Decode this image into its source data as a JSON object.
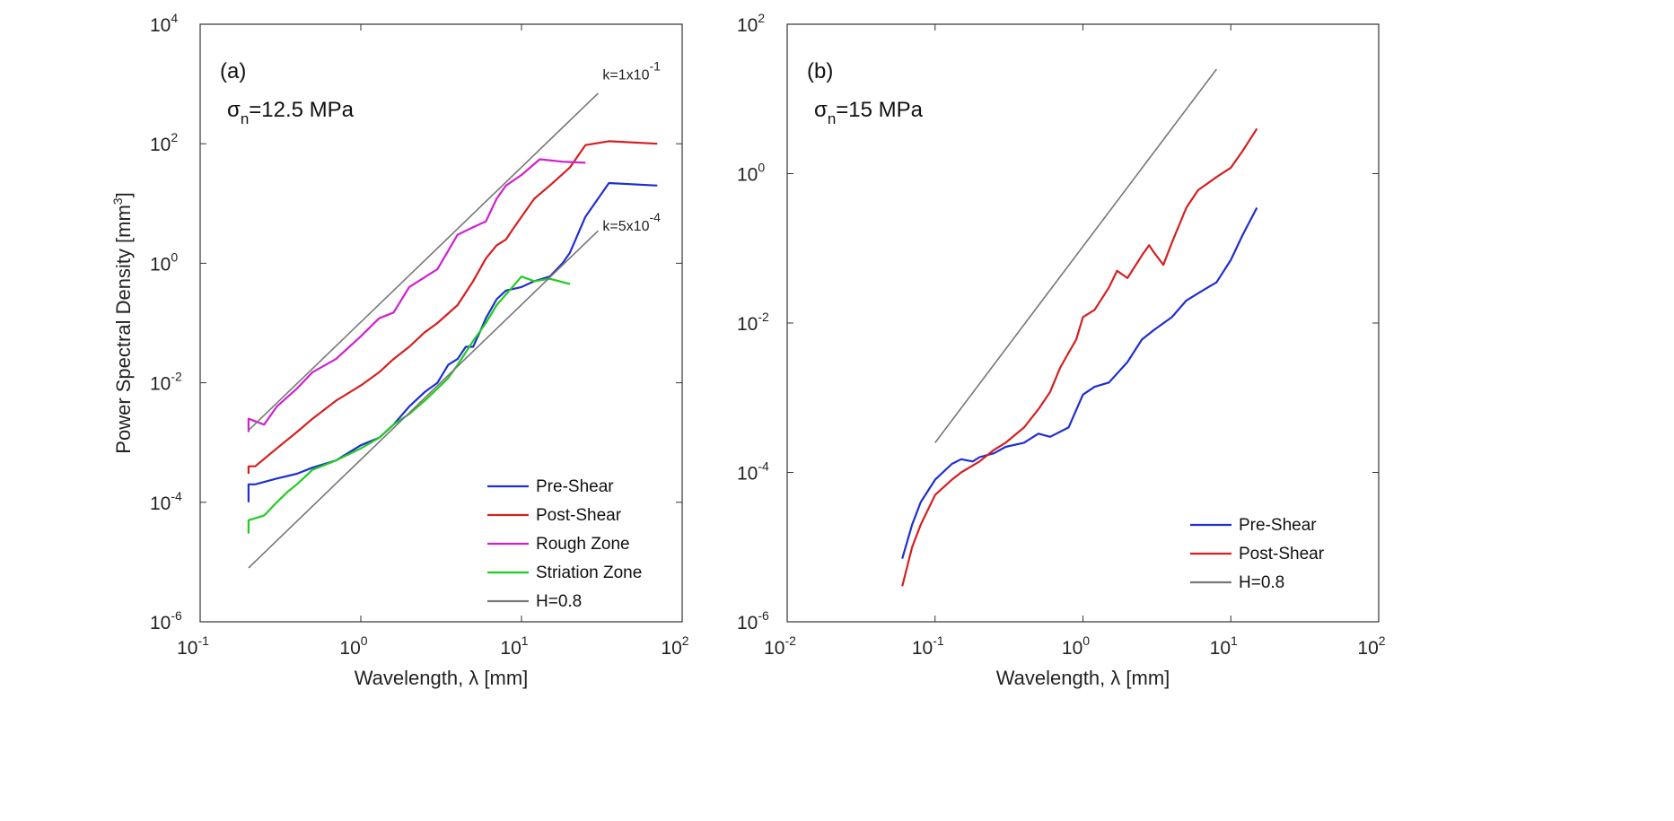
{
  "chart_data": [
    {
      "type": "line",
      "panel_label": "(a)",
      "annotation": {
        "prefix": "σ",
        "sub": "n",
        "rest": "=12.5 MPa"
      },
      "xlabel": "Wavelength, λ [mm]",
      "ylabel": "Power Spectral Density [mm",
      "ylabel_sup": "3",
      "ylabel_close": "]",
      "x_scale": "log",
      "y_scale": "log",
      "xlim": [
        0.1,
        100
      ],
      "ylim": [
        1e-06,
        10000
      ],
      "x_ticks": [
        {
          "base": "10",
          "exp": "-1",
          "value": 0.1
        },
        {
          "base": "10",
          "exp": "0",
          "value": 1
        },
        {
          "base": "10",
          "exp": "1",
          "value": 10
        },
        {
          "base": "10",
          "exp": "2",
          "value": 100
        }
      ],
      "y_ticks": [
        {
          "base": "10",
          "exp": "-6",
          "value": 1e-06
        },
        {
          "base": "10",
          "exp": "-4",
          "value": 0.0001
        },
        {
          "base": "10",
          "exp": "-2",
          "value": 0.01
        },
        {
          "base": "10",
          "exp": "0",
          "value": 1
        },
        {
          "base": "10",
          "exp": "2",
          "value": 100
        },
        {
          "base": "10",
          "exp": "4",
          "value": 10000
        }
      ],
      "slope_labels": [
        {
          "base": "k=1x10",
          "exp": "-1",
          "x": 32,
          "y": 1200
        },
        {
          "base": "k=5x10",
          "exp": "-4",
          "x": 32,
          "y": 3.5
        }
      ],
      "legend": {
        "position": "bottom-right",
        "entries": [
          "Pre-Shear",
          "Post-Shear",
          "Rough Zone",
          "Striation Zone",
          "H=0.8"
        ]
      },
      "series": [
        {
          "name": "Pre-Shear",
          "color": "#1f2fd0",
          "x": [
            0.2,
            0.2,
            0.22,
            0.3,
            0.4,
            0.5,
            0.7,
            1.0,
            1.3,
            1.6,
            2.0,
            2.5,
            3.0,
            3.5,
            4.0,
            4.5,
            5.0,
            5.5,
            6.0,
            7.0,
            8.0,
            10.0,
            12.0,
            15.0,
            18.0,
            20.0,
            25.0,
            35.0,
            70.0
          ],
          "y": [
            0.0001,
            0.0002,
            0.0002,
            0.00025,
            0.0003,
            0.00038,
            0.0005,
            0.0009,
            0.0012,
            0.002,
            0.004,
            0.007,
            0.01,
            0.02,
            0.025,
            0.04,
            0.04,
            0.07,
            0.12,
            0.25,
            0.35,
            0.4,
            0.5,
            0.6,
            1.0,
            1.5,
            6.0,
            22.0,
            20.0
          ]
        },
        {
          "name": "Post-Shear",
          "color": "#d42020",
          "x": [
            0.2,
            0.2,
            0.22,
            0.3,
            0.4,
            0.5,
            0.7,
            1.0,
            1.3,
            1.6,
            2.0,
            2.5,
            3.0,
            4.0,
            5.0,
            6.0,
            7.0,
            8.0,
            9.0,
            10.0,
            12.0,
            15.0,
            20.0,
            25.0,
            35.0,
            70.0
          ],
          "y": [
            0.0003,
            0.0004,
            0.0004,
            0.0008,
            0.0015,
            0.0025,
            0.005,
            0.009,
            0.015,
            0.025,
            0.04,
            0.07,
            0.1,
            0.2,
            0.5,
            1.2,
            2.0,
            2.5,
            4.0,
            6.0,
            12.0,
            20.0,
            40.0,
            95.0,
            110.0,
            100.0
          ]
        },
        {
          "name": "Rough Zone",
          "color": "#d020d0",
          "x": [
            0.2,
            0.2,
            0.25,
            0.3,
            0.4,
            0.5,
            0.7,
            1.0,
            1.3,
            1.6,
            2.0,
            3.0,
            4.0,
            5.0,
            6.0,
            7.0,
            8.0,
            10.0,
            13.0,
            18.0,
            25.0
          ],
          "y": [
            0.0015,
            0.0025,
            0.002,
            0.004,
            0.008,
            0.015,
            0.025,
            0.06,
            0.12,
            0.15,
            0.4,
            0.8,
            3.0,
            4.0,
            5.0,
            12.0,
            20.0,
            30.0,
            55.0,
            50.0,
            48.0
          ]
        },
        {
          "name": "Striation Zone",
          "color": "#22cc22",
          "x": [
            0.2,
            0.2,
            0.25,
            0.3,
            0.35,
            0.4,
            0.5,
            0.7,
            1.0,
            1.3,
            1.6,
            2.0,
            2.5,
            3.0,
            3.5,
            4.0,
            5.0,
            6.0,
            7.0,
            8.0,
            10.0,
            12.0,
            15.0,
            20.0
          ],
          "y": [
            3e-05,
            5e-05,
            6e-05,
            0.0001,
            0.00015,
            0.0002,
            0.00035,
            0.0005,
            0.0008,
            0.0012,
            0.002,
            0.003,
            0.005,
            0.008,
            0.012,
            0.02,
            0.05,
            0.1,
            0.2,
            0.3,
            0.6,
            0.5,
            0.55,
            0.45
          ]
        },
        {
          "name": "H=0.8",
          "color": "#777777",
          "x": [
            0.2,
            30.0
          ],
          "y": [
            8e-06,
            3.5
          ]
        },
        {
          "name": "",
          "color": "#777777",
          "x": [
            0.2,
            30.0
          ],
          "y": [
            0.0016,
            700.0
          ]
        }
      ]
    },
    {
      "type": "line",
      "panel_label": "(b)",
      "annotation": {
        "prefix": "σ",
        "sub": "n",
        "rest": "=15 MPa"
      },
      "xlabel": "Wavelength, λ [mm]",
      "ylabel": "",
      "x_scale": "log",
      "y_scale": "log",
      "xlim": [
        0.01,
        100
      ],
      "ylim": [
        1e-06,
        100
      ],
      "x_ticks": [
        {
          "base": "10",
          "exp": "-2",
          "value": 0.01
        },
        {
          "base": "10",
          "exp": "-1",
          "value": 0.1
        },
        {
          "base": "10",
          "exp": "0",
          "value": 1
        },
        {
          "base": "10",
          "exp": "1",
          "value": 10
        },
        {
          "base": "10",
          "exp": "2",
          "value": 100
        }
      ],
      "y_ticks": [
        {
          "base": "10",
          "exp": "-6",
          "value": 1e-06
        },
        {
          "base": "10",
          "exp": "-4",
          "value": 0.0001
        },
        {
          "base": "10",
          "exp": "-2",
          "value": 0.01
        },
        {
          "base": "10",
          "exp": "0",
          "value": 1
        },
        {
          "base": "10",
          "exp": "2",
          "value": 100
        }
      ],
      "slope_labels": [],
      "legend": {
        "position": "bottom-right",
        "entries": [
          "Pre-Shear",
          "Post-Shear",
          "H=0.8"
        ]
      },
      "series": [
        {
          "name": "Pre-Shear",
          "color": "#1f2fd0",
          "x": [
            0.06,
            0.07,
            0.08,
            0.1,
            0.13,
            0.15,
            0.18,
            0.2,
            0.25,
            0.3,
            0.4,
            0.5,
            0.6,
            0.8,
            1.0,
            1.2,
            1.5,
            2.0,
            2.5,
            3.0,
            4.0,
            5.0,
            6.0,
            7.0,
            8.0,
            10.0,
            12.0,
            15.0
          ],
          "y": [
            7e-06,
            2e-05,
            4e-05,
            8e-05,
            0.00013,
            0.00015,
            0.00014,
            0.00016,
            0.00018,
            0.00022,
            0.00025,
            0.00033,
            0.0003,
            0.0004,
            0.0011,
            0.0014,
            0.0016,
            0.003,
            0.006,
            0.008,
            0.012,
            0.02,
            0.025,
            0.03,
            0.035,
            0.07,
            0.15,
            0.35
          ]
        },
        {
          "name": "Post-Shear",
          "color": "#d42020",
          "x": [
            0.06,
            0.07,
            0.08,
            0.1,
            0.13,
            0.15,
            0.2,
            0.25,
            0.3,
            0.4,
            0.5,
            0.6,
            0.7,
            0.8,
            0.9,
            1.0,
            1.2,
            1.5,
            1.7,
            2.0,
            2.5,
            2.8,
            3.0,
            3.5,
            4.0,
            5.0,
            6.0,
            8.0,
            10.0,
            12.0,
            15.0
          ],
          "y": [
            3e-06,
            1e-05,
            2e-05,
            5e-05,
            8e-05,
            0.0001,
            0.00014,
            0.0002,
            0.00025,
            0.0004,
            0.0007,
            0.0012,
            0.0025,
            0.004,
            0.006,
            0.012,
            0.015,
            0.03,
            0.05,
            0.04,
            0.08,
            0.11,
            0.09,
            0.06,
            0.12,
            0.35,
            0.6,
            0.9,
            1.2,
            2.0,
            4.0
          ]
        },
        {
          "name": "H=0.8",
          "color": "#777777",
          "x": [
            0.1,
            8.0
          ],
          "y": [
            0.00025,
            25.0
          ]
        }
      ]
    }
  ]
}
